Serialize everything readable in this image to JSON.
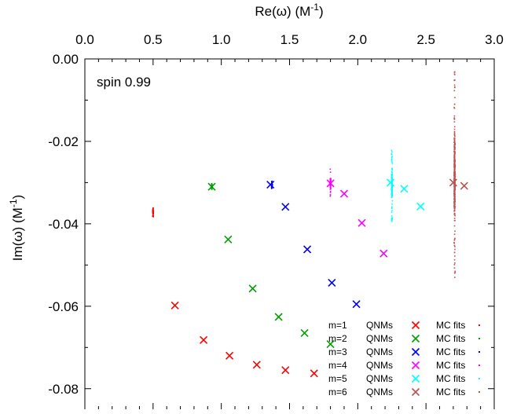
{
  "chart_data": {
    "type": "scatter",
    "xlabel": "Re(ω)  (M",
    "xlabel_sup": "-1",
    "xlabel_close": ")",
    "ylabel": "Im(ω)  (M",
    "ylabel_sup": "-1",
    "ylabel_close": ")",
    "xlim": [
      0.0,
      3.0
    ],
    "ylim": [
      -0.085,
      0.0
    ],
    "x_ticks": [
      "0.0",
      "0.5",
      "1.0",
      "1.5",
      "2.0",
      "2.5",
      "3.0"
    ],
    "x_tick_values": [
      0.0,
      0.5,
      1.0,
      1.5,
      2.0,
      2.5,
      3.0
    ],
    "y_ticks": [
      "0.00",
      "-0.02",
      "-0.04",
      "-0.06",
      "-0.08"
    ],
    "y_tick_values": [
      0.0,
      -0.02,
      -0.04,
      -0.06,
      -0.08
    ],
    "x_axis_position": "top",
    "grid": false,
    "annotation": "spin 0.99",
    "legend_placement": "bottom-right",
    "legend_headers": {
      "qnm": "QNMs",
      "mc": "MC fits"
    },
    "series": [
      {
        "name": "m=1",
        "color": "#ff0000",
        "qnm": [
          [
            0.66,
            -0.0598
          ],
          [
            0.87,
            -0.0682
          ],
          [
            1.06,
            -0.072
          ],
          [
            1.26,
            -0.0742
          ],
          [
            1.47,
            -0.0755
          ],
          [
            1.68,
            -0.0763
          ]
        ],
        "mc_fits": {
          "x_center": 0.5,
          "x_spread": 0.008,
          "y_min": -0.0385,
          "y_max": -0.0355
        }
      },
      {
        "name": "m=2",
        "color": "#00a000",
        "qnm": [
          [
            0.93,
            -0.031
          ],
          [
            1.05,
            -0.0438
          ],
          [
            1.23,
            -0.0557
          ],
          [
            1.42,
            -0.0626
          ],
          [
            1.61,
            -0.0665
          ],
          [
            1.8,
            -0.0692
          ]
        ],
        "mc_fits": {
          "x_center": 0.93,
          "x_spread": 0.008,
          "y_min": -0.0318,
          "y_max": -0.0302
        }
      },
      {
        "name": "m=3",
        "color": "#0000ff",
        "qnm": [
          [
            1.36,
            -0.0305
          ],
          [
            1.47,
            -0.0359
          ],
          [
            1.63,
            -0.0462
          ],
          [
            1.81,
            -0.0543
          ],
          [
            1.99,
            -0.0595
          ]
        ],
        "mc_fits": {
          "x_center": 1.37,
          "x_spread": 0.01,
          "y_min": -0.0315,
          "y_max": -0.0295
        }
      },
      {
        "name": "m=4",
        "color": "#ff00ff",
        "qnm": [
          [
            1.8,
            -0.0302
          ],
          [
            1.9,
            -0.0327
          ],
          [
            2.03,
            -0.0398
          ],
          [
            2.19,
            -0.0472
          ]
        ],
        "mc_fits": {
          "x_center": 1.8,
          "x_spread": 0.008,
          "y_min": -0.0335,
          "y_max": -0.0265
        }
      },
      {
        "name": "m=5",
        "color": "#00ffff",
        "qnm": [
          [
            2.24,
            -0.03
          ],
          [
            2.34,
            -0.0315
          ],
          [
            2.46,
            -0.0358
          ]
        ],
        "mc_fits": {
          "x_center": 2.25,
          "x_spread": 0.01,
          "y_min": -0.0395,
          "y_max": -0.022
        }
      },
      {
        "name": "m=6",
        "color": "#c0504d",
        "qnm": [
          [
            2.7,
            -0.03
          ],
          [
            2.78,
            -0.0308
          ]
        ],
        "mc_fits": {
          "x_center": 2.71,
          "x_spread": 0.01,
          "y_min": -0.0545,
          "y_max": -0.003
        }
      }
    ]
  }
}
